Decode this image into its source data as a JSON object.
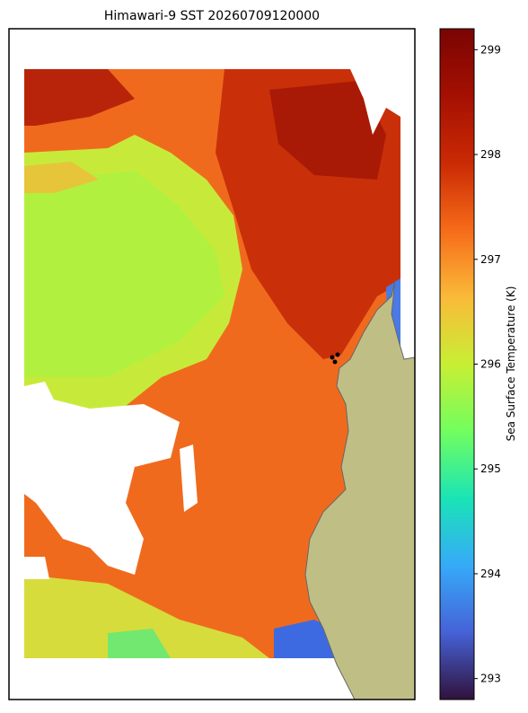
{
  "chart_data": {
    "type": "map",
    "title": "Himawari-9 SST 20260709120000",
    "colorbar": {
      "label": "Sea Surface Temperature (K)",
      "lim": [
        292.8,
        299.2
      ],
      "ticks": [
        293,
        294,
        295,
        296,
        297,
        298,
        299
      ]
    }
  }
}
